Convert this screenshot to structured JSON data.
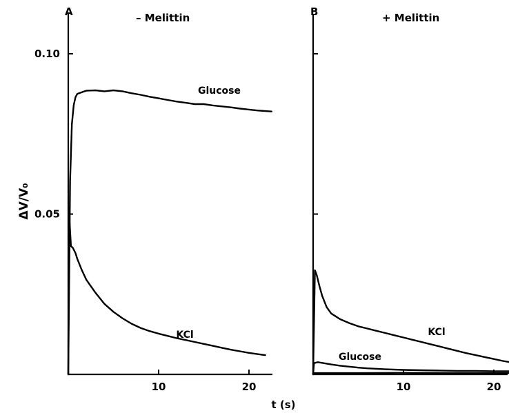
{
  "figure": {
    "ylabel": "ΔV/V₀",
    "xlabel": "t (s)"
  },
  "chart_data": [
    {
      "type": "line",
      "panel_label": "A",
      "title": "– Melittin",
      "xlim": [
        0,
        23
      ],
      "ylim": [
        0,
        0.105
      ],
      "x_ticks": [
        10,
        20
      ],
      "y_ticks": [
        0.05,
        0.1
      ],
      "y_tick_labels": [
        "0.05",
        "0.10"
      ],
      "series": [
        {
          "name": "Glucose",
          "x": [
            0,
            0.2,
            0.4,
            0.6,
            0.8,
            1,
            1.5,
            2,
            3,
            4,
            5,
            6,
            7,
            8,
            9,
            10,
            11,
            12,
            13,
            14,
            15,
            16,
            17,
            18,
            19,
            20,
            21,
            22.5
          ],
          "y": [
            0,
            0.06,
            0.078,
            0.084,
            0.0865,
            0.0875,
            0.088,
            0.0885,
            0.0886,
            0.0883,
            0.0886,
            0.0883,
            0.0877,
            0.0872,
            0.0866,
            0.0861,
            0.0856,
            0.0851,
            0.0847,
            0.0843,
            0.0843,
            0.0839,
            0.0836,
            0.0833,
            0.0829,
            0.0826,
            0.0823,
            0.082
          ]
        },
        {
          "name": "KCl",
          "x": [
            0,
            0.05,
            0.3,
            0.5,
            0.8,
            1,
            1.5,
            2,
            3,
            4,
            5,
            6,
            7,
            8,
            9,
            10,
            11,
            12,
            13,
            14,
            15,
            16,
            17,
            18,
            19,
            20,
            21,
            21.8
          ],
          "y": [
            0,
            0.052,
            0.04,
            0.0395,
            0.0378,
            0.036,
            0.0325,
            0.0295,
            0.0255,
            0.022,
            0.0195,
            0.0175,
            0.0158,
            0.0145,
            0.0135,
            0.0127,
            0.012,
            0.0113,
            0.0107,
            0.0101,
            0.0095,
            0.0089,
            0.0083,
            0.0077,
            0.0072,
            0.0067,
            0.0063,
            0.006
          ]
        }
      ]
    },
    {
      "type": "line",
      "panel_label": "B",
      "title": "+ Melittin",
      "xlim": [
        0,
        23
      ],
      "ylim": [
        0,
        0.105
      ],
      "x_ticks": [
        10,
        20
      ],
      "y_ticks": [
        0.05,
        0.1
      ],
      "series": [
        {
          "name": "KCl",
          "x": [
            0,
            0.2,
            0.4,
            0.7,
            1,
            1.5,
            2,
            3,
            4,
            5,
            6,
            7,
            8,
            9,
            10,
            11,
            12,
            13,
            14,
            15,
            16,
            17,
            18,
            19,
            20,
            21,
            22,
            23
          ],
          "y": [
            0,
            0.0325,
            0.031,
            0.0275,
            0.0245,
            0.021,
            0.019,
            0.0172,
            0.016,
            0.015,
            0.0143,
            0.0136,
            0.0129,
            0.0122,
            0.0115,
            0.0108,
            0.0101,
            0.0094,
            0.0087,
            0.008,
            0.0073,
            0.0066,
            0.006,
            0.0054,
            0.0048,
            0.0042,
            0.0037,
            0.0033
          ]
        },
        {
          "name": "Glucose",
          "x": [
            0,
            0.1,
            0.5,
            1,
            2,
            3,
            4,
            5,
            6,
            8,
            10,
            12,
            14,
            16,
            18,
            20,
            22,
            23
          ],
          "y": [
            0,
            0.0035,
            0.0038,
            0.0036,
            0.0031,
            0.0027,
            0.0024,
            0.0021,
            0.0019,
            0.0016,
            0.0014,
            0.0013,
            0.0012,
            0.0011,
            0.0011,
            0.001,
            0.001,
            0.001
          ]
        },
        {
          "name": "",
          "x": [
            0,
            5,
            10,
            15,
            20,
            23
          ],
          "y": [
            0.0004,
            0.0004,
            0.0005,
            0.0004,
            0.0004,
            0.0004
          ]
        }
      ]
    }
  ]
}
